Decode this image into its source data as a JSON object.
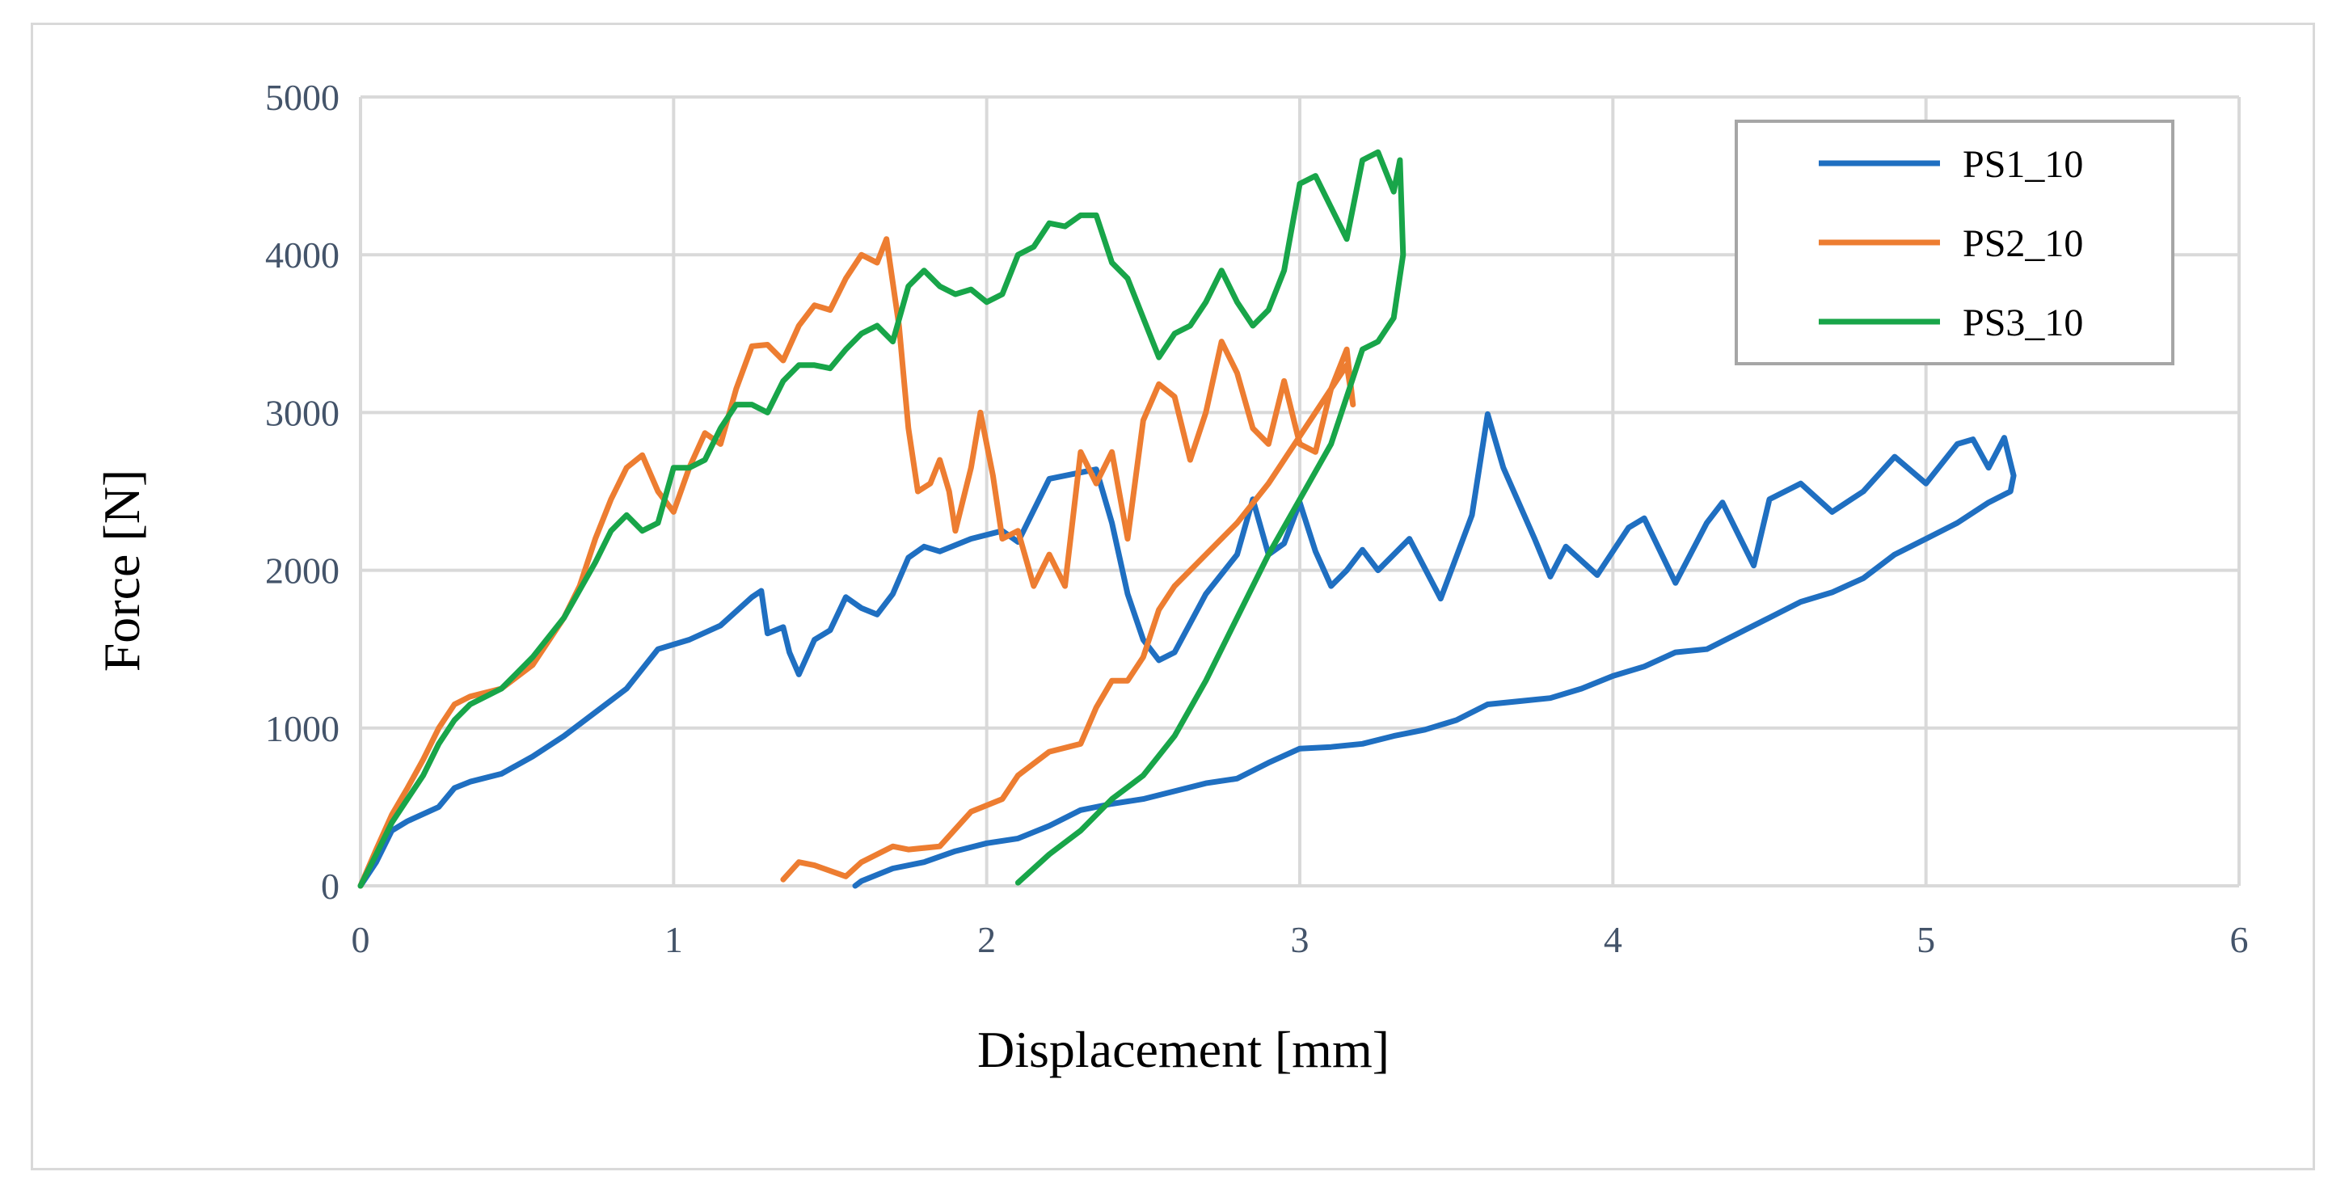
{
  "chart_data": {
    "type": "line",
    "title": "",
    "xlabel": "Displacement [mm]",
    "ylabel": "Force [N]",
    "xlim": [
      0,
      6
    ],
    "ylim": [
      0,
      5000
    ],
    "xticks": [
      "0",
      "1",
      "2",
      "3",
      "4",
      "5",
      "6"
    ],
    "yticks": [
      "0",
      "1000",
      "2000",
      "3000",
      "4000",
      "5000"
    ],
    "grid": true,
    "legend_position": "top-right",
    "series": [
      {
        "name": "PS1_10",
        "color": "#1f6fc1",
        "points": [
          [
            0,
            0
          ],
          [
            0.05,
            150
          ],
          [
            0.1,
            350
          ],
          [
            0.15,
            410
          ],
          [
            0.25,
            500
          ],
          [
            0.3,
            620
          ],
          [
            0.35,
            660
          ],
          [
            0.45,
            710
          ],
          [
            0.55,
            820
          ],
          [
            0.65,
            950
          ],
          [
            0.75,
            1100
          ],
          [
            0.85,
            1250
          ],
          [
            0.95,
            1500
          ],
          [
            1.05,
            1560
          ],
          [
            1.15,
            1650
          ],
          [
            1.25,
            1830
          ],
          [
            1.28,
            1870
          ],
          [
            1.3,
            1600
          ],
          [
            1.35,
            1640
          ],
          [
            1.37,
            1480
          ],
          [
            1.4,
            1340
          ],
          [
            1.45,
            1560
          ],
          [
            1.5,
            1620
          ],
          [
            1.55,
            1830
          ],
          [
            1.6,
            1760
          ],
          [
            1.65,
            1720
          ],
          [
            1.7,
            1850
          ],
          [
            1.75,
            2080
          ],
          [
            1.8,
            2150
          ],
          [
            1.85,
            2120
          ],
          [
            1.95,
            2200
          ],
          [
            2.05,
            2250
          ],
          [
            2.1,
            2180
          ],
          [
            2.2,
            2580
          ],
          [
            2.3,
            2620
          ],
          [
            2.35,
            2640
          ],
          [
            2.4,
            2300
          ],
          [
            2.45,
            1850
          ],
          [
            2.5,
            1560
          ],
          [
            2.55,
            1430
          ],
          [
            2.6,
            1480
          ],
          [
            2.7,
            1850
          ],
          [
            2.8,
            2100
          ],
          [
            2.85,
            2450
          ],
          [
            2.9,
            2100
          ],
          [
            2.95,
            2170
          ],
          [
            3.0,
            2430
          ],
          [
            3.05,
            2120
          ],
          [
            3.1,
            1900
          ],
          [
            3.15,
            2000
          ],
          [
            3.2,
            2130
          ],
          [
            3.25,
            2000
          ],
          [
            3.35,
            2200
          ],
          [
            3.45,
            1820
          ],
          [
            3.55,
            2350
          ],
          [
            3.6,
            2990
          ],
          [
            3.65,
            2650
          ],
          [
            3.75,
            2200
          ],
          [
            3.8,
            1960
          ],
          [
            3.85,
            2150
          ],
          [
            3.95,
            1970
          ],
          [
            4.05,
            2270
          ],
          [
            4.1,
            2330
          ],
          [
            4.2,
            1920
          ],
          [
            4.3,
            2300
          ],
          [
            4.35,
            2430
          ],
          [
            4.45,
            2030
          ],
          [
            4.5,
            2450
          ],
          [
            4.6,
            2550
          ],
          [
            4.7,
            2370
          ],
          [
            4.8,
            2500
          ],
          [
            4.9,
            2720
          ],
          [
            5.0,
            2550
          ],
          [
            5.1,
            2800
          ],
          [
            5.15,
            2830
          ],
          [
            5.2,
            2650
          ],
          [
            5.25,
            2840
          ],
          [
            5.28,
            2600
          ],
          [
            5.27,
            2500
          ],
          [
            5.25,
            2480
          ],
          [
            5.2,
            2430
          ],
          [
            5.1,
            2300
          ],
          [
            5.0,
            2200
          ],
          [
            4.9,
            2100
          ],
          [
            4.8,
            1950
          ],
          [
            4.7,
            1860
          ],
          [
            4.6,
            1800
          ],
          [
            4.5,
            1700
          ],
          [
            4.4,
            1600
          ],
          [
            4.3,
            1500
          ],
          [
            4.2,
            1480
          ],
          [
            4.1,
            1390
          ],
          [
            4.0,
            1330
          ],
          [
            3.9,
            1250
          ],
          [
            3.8,
            1190
          ],
          [
            3.7,
            1170
          ],
          [
            3.6,
            1150
          ],
          [
            3.5,
            1050
          ],
          [
            3.4,
            990
          ],
          [
            3.3,
            950
          ],
          [
            3.2,
            900
          ],
          [
            3.1,
            880
          ],
          [
            3.0,
            870
          ],
          [
            2.9,
            780
          ],
          [
            2.8,
            680
          ],
          [
            2.7,
            650
          ],
          [
            2.6,
            600
          ],
          [
            2.5,
            550
          ],
          [
            2.4,
            520
          ],
          [
            2.3,
            480
          ],
          [
            2.2,
            380
          ],
          [
            2.1,
            300
          ],
          [
            2.0,
            270
          ],
          [
            1.9,
            220
          ],
          [
            1.8,
            150
          ],
          [
            1.7,
            110
          ],
          [
            1.6,
            30
          ],
          [
            1.58,
            0
          ]
        ]
      },
      {
        "name": "PS2_10",
        "color": "#ed7d31",
        "points": [
          [
            0,
            0
          ],
          [
            0.05,
            230
          ],
          [
            0.1,
            450
          ],
          [
            0.15,
            620
          ],
          [
            0.2,
            800
          ],
          [
            0.25,
            1000
          ],
          [
            0.3,
            1150
          ],
          [
            0.35,
            1200
          ],
          [
            0.45,
            1250
          ],
          [
            0.55,
            1400
          ],
          [
            0.65,
            1700
          ],
          [
            0.7,
            1900
          ],
          [
            0.75,
            2200
          ],
          [
            0.8,
            2450
          ],
          [
            0.85,
            2650
          ],
          [
            0.9,
            2730
          ],
          [
            0.95,
            2500
          ],
          [
            1.0,
            2370
          ],
          [
            1.05,
            2650
          ],
          [
            1.1,
            2870
          ],
          [
            1.15,
            2800
          ],
          [
            1.2,
            3150
          ],
          [
            1.25,
            3420
          ],
          [
            1.3,
            3430
          ],
          [
            1.35,
            3330
          ],
          [
            1.4,
            3550
          ],
          [
            1.45,
            3680
          ],
          [
            1.5,
            3650
          ],
          [
            1.55,
            3850
          ],
          [
            1.6,
            4000
          ],
          [
            1.65,
            3950
          ],
          [
            1.68,
            4100
          ],
          [
            1.72,
            3550
          ],
          [
            1.75,
            2900
          ],
          [
            1.78,
            2500
          ],
          [
            1.82,
            2550
          ],
          [
            1.85,
            2700
          ],
          [
            1.88,
            2500
          ],
          [
            1.9,
            2250
          ],
          [
            1.95,
            2650
          ],
          [
            1.98,
            3000
          ],
          [
            2.02,
            2600
          ],
          [
            2.05,
            2200
          ],
          [
            2.1,
            2250
          ],
          [
            2.15,
            1900
          ],
          [
            2.2,
            2100
          ],
          [
            2.25,
            1900
          ],
          [
            2.3,
            2750
          ],
          [
            2.35,
            2550
          ],
          [
            2.4,
            2750
          ],
          [
            2.45,
            2200
          ],
          [
            2.5,
            2950
          ],
          [
            2.55,
            3180
          ],
          [
            2.6,
            3100
          ],
          [
            2.65,
            2700
          ],
          [
            2.7,
            3000
          ],
          [
            2.75,
            3450
          ],
          [
            2.8,
            3250
          ],
          [
            2.85,
            2900
          ],
          [
            2.9,
            2800
          ],
          [
            2.95,
            3200
          ],
          [
            3.0,
            2800
          ],
          [
            3.05,
            2750
          ],
          [
            3.1,
            3150
          ],
          [
            3.15,
            3400
          ],
          [
            3.17,
            3050
          ],
          [
            3.15,
            3300
          ],
          [
            3.1,
            3150
          ],
          [
            3.0,
            2850
          ],
          [
            2.9,
            2550
          ],
          [
            2.8,
            2300
          ],
          [
            2.7,
            2100
          ],
          [
            2.6,
            1900
          ],
          [
            2.55,
            1750
          ],
          [
            2.5,
            1450
          ],
          [
            2.45,
            1300
          ],
          [
            2.4,
            1300
          ],
          [
            2.35,
            1130
          ],
          [
            2.3,
            900
          ],
          [
            2.2,
            850
          ],
          [
            2.1,
            700
          ],
          [
            2.05,
            550
          ],
          [
            1.95,
            470
          ],
          [
            1.85,
            250
          ],
          [
            1.75,
            230
          ],
          [
            1.7,
            250
          ],
          [
            1.6,
            150
          ],
          [
            1.55,
            60
          ],
          [
            1.45,
            130
          ],
          [
            1.4,
            150
          ],
          [
            1.35,
            40
          ]
        ]
      },
      {
        "name": "PS3_10",
        "color": "#18a549",
        "points": [
          [
            0,
            0
          ],
          [
            0.05,
            200
          ],
          [
            0.1,
            400
          ],
          [
            0.15,
            550
          ],
          [
            0.2,
            700
          ],
          [
            0.25,
            900
          ],
          [
            0.3,
            1050
          ],
          [
            0.35,
            1150
          ],
          [
            0.45,
            1250
          ],
          [
            0.55,
            1450
          ],
          [
            0.65,
            1700
          ],
          [
            0.75,
            2050
          ],
          [
            0.8,
            2250
          ],
          [
            0.85,
            2350
          ],
          [
            0.9,
            2250
          ],
          [
            0.95,
            2300
          ],
          [
            1.0,
            2650
          ],
          [
            1.05,
            2650
          ],
          [
            1.1,
            2700
          ],
          [
            1.15,
            2900
          ],
          [
            1.2,
            3050
          ],
          [
            1.25,
            3050
          ],
          [
            1.3,
            3000
          ],
          [
            1.35,
            3200
          ],
          [
            1.4,
            3300
          ],
          [
            1.45,
            3300
          ],
          [
            1.5,
            3280
          ],
          [
            1.55,
            3400
          ],
          [
            1.6,
            3500
          ],
          [
            1.65,
            3550
          ],
          [
            1.7,
            3450
          ],
          [
            1.75,
            3800
          ],
          [
            1.8,
            3900
          ],
          [
            1.85,
            3800
          ],
          [
            1.9,
            3750
          ],
          [
            1.95,
            3780
          ],
          [
            2.0,
            3700
          ],
          [
            2.05,
            3750
          ],
          [
            2.1,
            4000
          ],
          [
            2.15,
            4050
          ],
          [
            2.2,
            4200
          ],
          [
            2.25,
            4180
          ],
          [
            2.3,
            4250
          ],
          [
            2.35,
            4250
          ],
          [
            2.4,
            3950
          ],
          [
            2.45,
            3850
          ],
          [
            2.5,
            3600
          ],
          [
            2.55,
            3350
          ],
          [
            2.6,
            3500
          ],
          [
            2.65,
            3550
          ],
          [
            2.7,
            3700
          ],
          [
            2.75,
            3900
          ],
          [
            2.8,
            3700
          ],
          [
            2.85,
            3550
          ],
          [
            2.9,
            3650
          ],
          [
            2.95,
            3900
          ],
          [
            3.0,
            4450
          ],
          [
            3.05,
            4500
          ],
          [
            3.1,
            4300
          ],
          [
            3.15,
            4100
          ],
          [
            3.2,
            4600
          ],
          [
            3.25,
            4650
          ],
          [
            3.3,
            4400
          ],
          [
            3.32,
            4600
          ],
          [
            3.33,
            4000
          ],
          [
            3.3,
            3600
          ],
          [
            3.25,
            3450
          ],
          [
            3.2,
            3400
          ],
          [
            3.15,
            3100
          ],
          [
            3.1,
            2800
          ],
          [
            3.0,
            2450
          ],
          [
            2.9,
            2100
          ],
          [
            2.8,
            1700
          ],
          [
            2.7,
            1300
          ],
          [
            2.6,
            950
          ],
          [
            2.5,
            700
          ],
          [
            2.4,
            550
          ],
          [
            2.3,
            350
          ],
          [
            2.2,
            200
          ],
          [
            2.1,
            20
          ]
        ]
      }
    ]
  }
}
